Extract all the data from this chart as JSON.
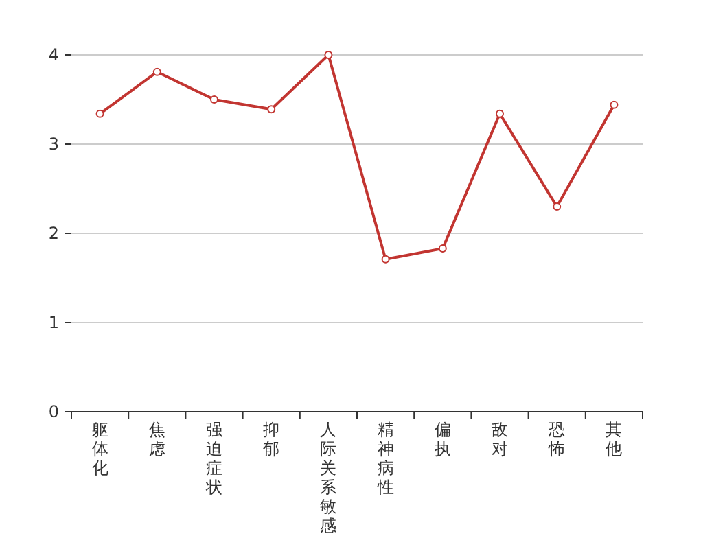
{
  "chart_data": {
    "type": "line",
    "categories": [
      "躯体化",
      "焦虑",
      "强迫症状",
      "抑郁",
      "人际关系敏感",
      "精神病性",
      "偏执",
      "敌对",
      "恐怖",
      "其他"
    ],
    "series": [
      {
        "color": "#c23531",
        "values": [
          3.34,
          3.81,
          3.5,
          3.39,
          4.0,
          1.71,
          1.83,
          3.34,
          2.3,
          3.44
        ]
      }
    ],
    "ylim": [
      0,
      4
    ],
    "yticks": [
      0,
      1,
      2,
      3,
      4
    ],
    "grid": "y",
    "marker": "circle",
    "line_style": "solid"
  }
}
